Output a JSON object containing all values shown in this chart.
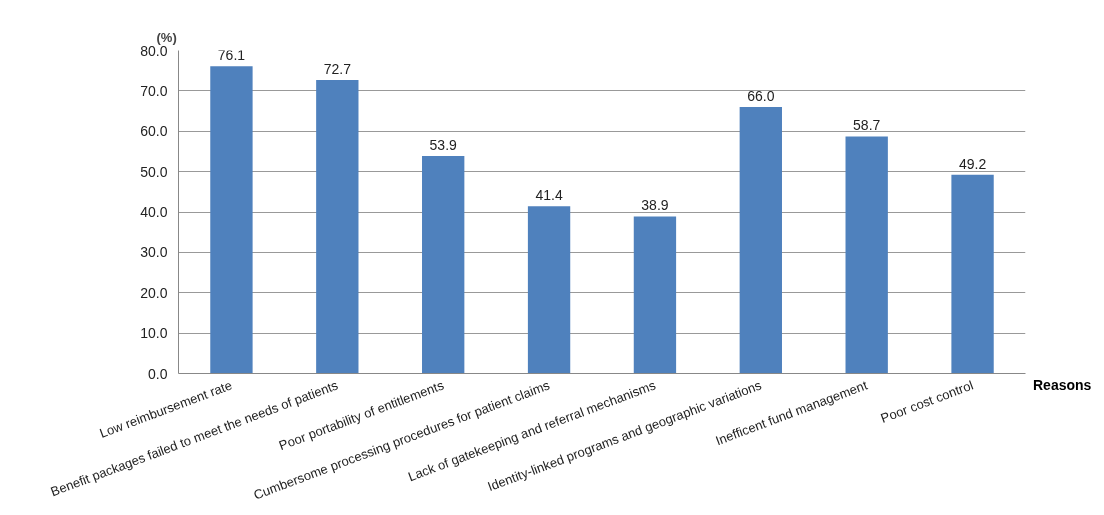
{
  "chart_data": {
    "type": "bar",
    "ylabel": "(%)",
    "xlabel": "Reasons",
    "categories": [
      "Low reimbursement rate",
      "Benefit packages failed to meet the needs of patients",
      "Poor portability of entitlements",
      "Cumbersome processing procedures for patient claims",
      "Lack of gatekeeping and referral mechanisms",
      "Identity-linked programs and geographic variations",
      "Inefficent fund management",
      "Poor cost control"
    ],
    "values": [
      76.1,
      72.7,
      53.9,
      41.4,
      38.9,
      66.0,
      58.7,
      49.2
    ],
    "value_labels": [
      "76.1",
      "72.7",
      "53.9",
      "41.4",
      "38.9",
      "66.0",
      "58.7",
      "49.2"
    ],
    "color": "#4f81bd",
    "ylim": [
      0,
      80
    ],
    "yticks": [
      {
        "value": 0,
        "label": "0.0"
      },
      {
        "value": 10,
        "label": "10.0"
      },
      {
        "value": 20,
        "label": "20.0"
      },
      {
        "value": 30,
        "label": "30.0"
      },
      {
        "value": 40,
        "label": "40.0"
      },
      {
        "value": 50,
        "label": "50.0"
      },
      {
        "value": 60,
        "label": "60.0"
      },
      {
        "value": 70,
        "label": "70.0"
      },
      {
        "value": 80,
        "label": "80.0"
      }
    ],
    "grid": "y",
    "data_labels": true
  }
}
